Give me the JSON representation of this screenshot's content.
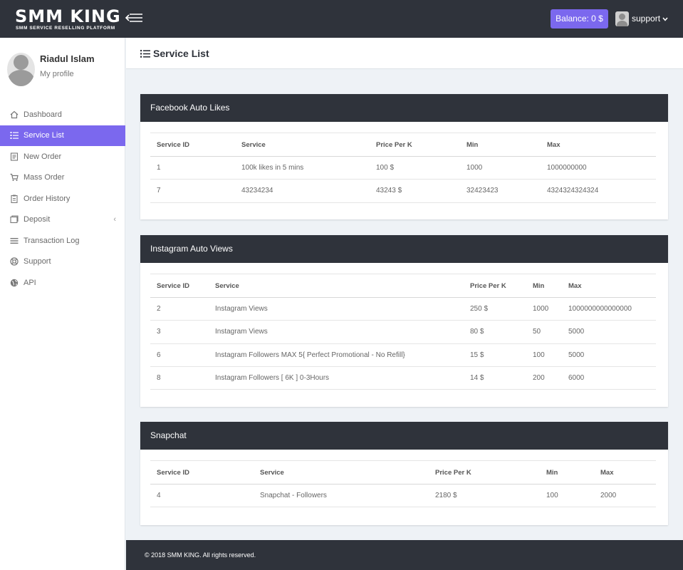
{
  "brand": {
    "name": "SMM KING",
    "tagline": "SMM SERVICE RESELLING PLATFORM"
  },
  "topbar": {
    "balance_label": "Balance: 0 $",
    "username": "support",
    "caret": "⌄"
  },
  "profile": {
    "name": "Riadul Islam",
    "link": "My profile"
  },
  "sidebar": {
    "items": [
      {
        "label": "Dashboard",
        "icon": "home-icon"
      },
      {
        "label": "Service List",
        "icon": "list-icon"
      },
      {
        "label": "New Order",
        "icon": "document-icon"
      },
      {
        "label": "Mass Order",
        "icon": "cart-icon"
      },
      {
        "label": "Order History",
        "icon": "clipboard-icon"
      },
      {
        "label": "Deposit",
        "icon": "wallet-icon",
        "chevron": "‹"
      },
      {
        "label": "Transaction Log",
        "icon": "bars-icon"
      },
      {
        "label": "Support",
        "icon": "lifebuoy-icon"
      },
      {
        "label": "API",
        "icon": "globe-icon"
      }
    ],
    "active_index": 1
  },
  "page": {
    "title": "Service List"
  },
  "headers": [
    "Service ID",
    "Service",
    "Price Per K",
    "Min",
    "Max"
  ],
  "categories": [
    {
      "title": "Facebook Auto Likes",
      "rows": [
        [
          "1",
          "100k likes in 5 mins",
          "100 $",
          "1000",
          "1000000000"
        ],
        [
          "7",
          "43234234",
          "43243 $",
          "32423423",
          "4324324324324"
        ]
      ]
    },
    {
      "title": "Instagram Auto Views",
      "rows": [
        [
          "2",
          "Instagram Views",
          "250 $",
          "1000",
          "1000000000000000"
        ],
        [
          "3",
          "Instagram Views",
          "80 $",
          "50",
          "5000"
        ],
        [
          "6",
          "Instagram Followers MAX 5{ Perfect Promotional - No Refill}",
          "15 $",
          "100",
          "5000"
        ],
        [
          "8",
          "Instagram Followers [ 6K ] 0-3Hours",
          "14 $",
          "200",
          "6000"
        ]
      ]
    },
    {
      "title": "Snapchat",
      "rows": [
        [
          "4",
          "Snapchat - Followers",
          "2180 $",
          "100",
          "2000"
        ]
      ]
    }
  ],
  "footer": {
    "text": "© 2018 SMM KING. All rights reserved."
  },
  "colors": {
    "accent": "#7b68ee",
    "dark": "#2f333b",
    "background": "#eef2f6"
  }
}
